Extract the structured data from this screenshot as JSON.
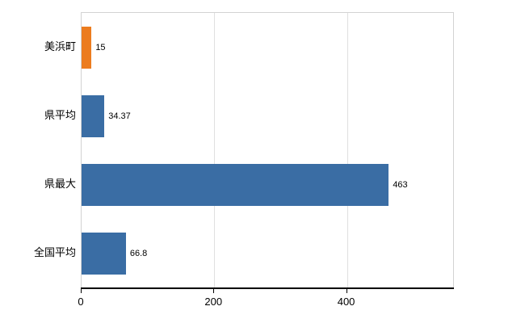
{
  "chart_data": {
    "type": "bar",
    "orientation": "horizontal",
    "title": "",
    "categories": [
      "美浜町",
      "県平均",
      "県最大",
      "全国平均"
    ],
    "values": [
      15,
      34.37,
      463,
      66.8
    ],
    "value_labels": [
      "15",
      "34.37",
      "463",
      "66.8"
    ],
    "bar_colors": [
      "#ec7c1f",
      "#3a6da4",
      "#3a6da4",
      "#3a6da4"
    ],
    "xlim": [
      0,
      560
    ],
    "x_ticks": [
      0,
      200,
      400
    ],
    "grid": true,
    "legend": "none"
  }
}
